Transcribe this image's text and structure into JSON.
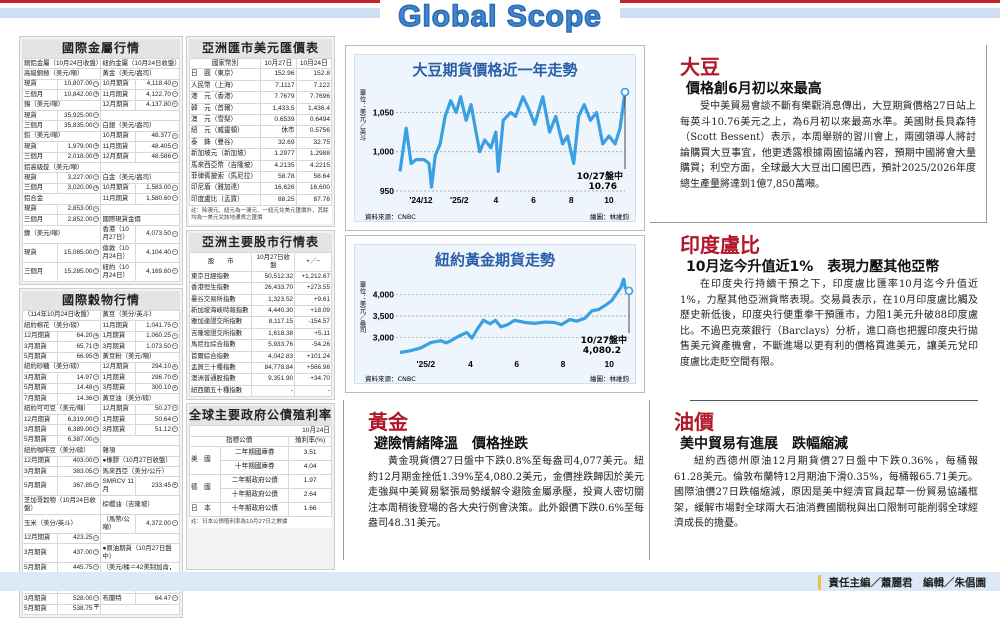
{
  "header": {
    "title": "Global Scope"
  },
  "metals": {
    "title": "國際金屬行情",
    "rows": [
      [
        "銅鋁金屬（10月24日收盤）",
        "",
        "",
        "紐約金屬（10月24日收盤）",
        "",
        ""
      ],
      [
        "高級銅極（美元/噸）",
        "",
        "",
        "黃金（美元/盎司）",
        "",
        ""
      ],
      [
        "現貨",
        "10,807.00",
        "-",
        "10月期貨",
        "4,118.40",
        "-"
      ],
      [
        "三個月",
        "10,842.00",
        "+",
        "11月期貨",
        "4,122.70",
        "-"
      ],
      [
        "錫（美元/噸）",
        "",
        "",
        "12月期貨",
        "4,137.80",
        "-"
      ],
      [
        "現貨",
        "35,925.00",
        "-",
        "",
        "",
        ""
      ],
      [
        "三個月",
        "35,835.00",
        "-",
        "白銀（美元/盎司）",
        "",
        ""
      ],
      [
        "鉛（美元/噸）",
        "",
        "",
        "10月期貨",
        "48.377",
        "-"
      ],
      [
        "現貨",
        "1,979.00",
        "+",
        "11月期貨",
        "48.405",
        "-"
      ],
      [
        "三個月",
        "2,018.00",
        "+",
        "12月期貨",
        "48.586",
        "-"
      ],
      [
        "鋁高級錠（美元/噸）",
        "",
        "",
        "",
        "",
        ""
      ],
      [
        "現貨",
        "3,227.00",
        "-",
        "白金（美元/盎司）",
        "",
        ""
      ],
      [
        "三個月",
        "3,020.00",
        "+",
        "10月期貨",
        "1,583.00",
        "-"
      ],
      [
        "鋁合金",
        "",
        "",
        "11月期貨",
        "1,580.60",
        "-"
      ],
      [
        "現貨",
        "2,853.00",
        "-",
        "",
        "",
        ""
      ],
      [
        "三個月",
        "2,852.00",
        "-",
        "國際現貨金價",
        "",
        ""
      ],
      [
        "鎳（美元/噸）",
        "",
        "",
        "香港（10月27日）",
        "4,073.50",
        "-"
      ],
      [
        "現貨",
        "15,085.00",
        "-",
        "倫敦（10月24日）",
        "4,104.40",
        "-"
      ],
      [
        "三個月",
        "15,285.00",
        "-",
        "紐約（10月24日）",
        "4,169.60",
        "-"
      ]
    ]
  },
  "grains": {
    "title": "國際穀物行情",
    "rows": [
      [
        "（114年10月24日收盤）",
        "",
        "",
        "黃豆（美分/英斗）",
        "",
        ""
      ],
      [
        "紐約棉花（美分/磅）",
        "",
        "",
        "11月期貨",
        "1,041.75",
        "-"
      ],
      [
        "12月期貨",
        "64.20",
        "+",
        "1月期貨",
        "1,060.25",
        "-"
      ],
      [
        "3月期貨",
        "65.71",
        "+",
        "3月期貨",
        "1,073.50",
        "-"
      ],
      [
        "5月期貨",
        "66.95",
        "+",
        "黃豆粉（美元/噸）",
        "",
        ""
      ],
      [
        "紐約砂糖（美分/磅）",
        "",
        "",
        "12月期貨",
        "294.10",
        "+"
      ],
      [
        "3月期貨",
        "14.97",
        "-",
        "1月期貨",
        "296.70",
        "+"
      ],
      [
        "5月期貨",
        "14.48",
        "-",
        "3月期貨",
        "300.10",
        "+"
      ],
      [
        "7月期貨",
        "14.36",
        "-",
        "黃豆油（美分/磅）",
        "",
        ""
      ],
      [
        "紐約可可豆（美元/噸）",
        "",
        "",
        "12月期貨",
        "50.27",
        "-"
      ],
      [
        "12月期貨",
        "6,319.00",
        "-",
        "1月期貨",
        "50.64",
        "-"
      ],
      [
        "3月期貨",
        "6,389.00",
        "-",
        "3月期貨",
        "51.12",
        "-"
      ],
      [
        "5月期貨",
        "6,387.00",
        "-",
        "",
        "",
        ""
      ],
      [
        "紐約咖啡豆（美分/磅）",
        "",
        "",
        "雜項",
        "",
        ""
      ],
      [
        "12月期貨",
        "403.00",
        "-",
        "●橡膠（10月27日收盤）",
        "",
        ""
      ],
      [
        "3月期貨",
        "383.05",
        "-",
        "馬來西亞（美分/公斤）",
        "",
        ""
      ],
      [
        "5月期貨",
        "367.85",
        "-",
        "SMRCV 11月",
        "233.45",
        "+"
      ],
      [
        "芝加哥穀物（10月24日收盤）",
        "",
        "",
        "棕櫚油（吉隆坡）",
        "",
        ""
      ],
      [
        "玉米（美分/英斗）",
        "",
        "",
        "（馬幣/公噸）",
        "4,372.00",
        "-"
      ],
      [
        "12月期貨",
        "423.25",
        "-",
        "",
        "",
        ""
      ],
      [
        "3月期貨",
        "437.00",
        "-",
        "●原油期貨（10月27日盤中）",
        "",
        ""
      ],
      [
        "5月期貨",
        "445.75",
        "-",
        "（美元/桶＝42美制加侖，",
        "",
        ""
      ],
      [
        "小麥（美分/英斗）",
        "",
        "",
        "158.98公升）",
        "",
        ""
      ],
      [
        "12月期貨",
        "512.50",
        "-",
        "西德州",
        "60.82",
        "-"
      ],
      [
        "3月期貨",
        "528.00",
        "-",
        "布蘭特",
        "64.47",
        "-"
      ],
      [
        "5月期貨",
        "538.75",
        "平",
        "",
        "",
        ""
      ]
    ]
  },
  "fx": {
    "title": "亞洲匯市美元匯價表",
    "header": [
      "國家幣別",
      "10月27日",
      "10月24日"
    ],
    "rows": [
      [
        "日　圓（東京）",
        "152.96",
        "152.8"
      ],
      [
        "人民幣（上海）",
        "7.1117",
        "7.122"
      ],
      [
        "港　元（香港）",
        "7.7679",
        "7.7696"
      ],
      [
        "韓　元（首爾）",
        "1,433.5",
        "1,436.4"
      ],
      [
        "澳　元（雪梨）",
        "0.6539",
        "0.6494"
      ],
      [
        "紐　元（威靈頓）",
        "休市",
        "0.5756"
      ],
      [
        "泰　銖（曼谷）",
        "32.69",
        "32.75"
      ],
      [
        "新加坡元（新加坡）",
        "1.2977",
        "1.2988"
      ],
      [
        "馬來西亞幣（吉隆坡）",
        "4.2135",
        "4.2215"
      ],
      [
        "菲律賓披索（馬尼拉）",
        "58.78",
        "58.64"
      ],
      [
        "印尼盾（雅加達）",
        "16,626",
        "16,600"
      ],
      [
        "印度盧比（孟買）",
        "88.25",
        "87.76"
      ]
    ],
    "note": "註：除澳元、紐元為一澳元、一紐元兌美元匯價外，其餘均為一美元兌該地通貨之匯價"
  },
  "stocks": {
    "title": "亞洲主要股市行情表",
    "header": [
      "股　　市",
      "10月27日收盤",
      "+／−"
    ],
    "rows": [
      [
        "東京日經指數",
        "50,512.32",
        "+1,212.67"
      ],
      [
        "香港恒生指數",
        "26,433.70",
        "+273.55"
      ],
      [
        "曼谷交易所指數",
        "1,323.52",
        "+9.61"
      ],
      [
        "新加坡海峽時報指數",
        "4,440.30",
        "+18.09"
      ],
      [
        "雅加達證交所指數",
        "8,117.15",
        "-154.57"
      ],
      [
        "吉隆坡證交所指數",
        "1,618.38",
        "+5.11"
      ],
      [
        "馬尼拉綜合指數",
        "5,933.76",
        "-54.26"
      ],
      [
        "首爾綜合指數",
        "4,042.83",
        "+101.24"
      ],
      [
        "孟買三十種指數",
        "84,778.84",
        "+566.96"
      ],
      [
        "澳洲普通股指數",
        "9,351.90",
        "+34.70"
      ],
      [
        "紐西蘭五十種指數",
        "-",
        "-"
      ]
    ]
  },
  "bonds": {
    "title": "全球主要政府公債殖利率",
    "date": "10月24日",
    "header": [
      "指標公債",
      "殖利率(%)"
    ],
    "rows": [
      [
        "美　國",
        "二年期國庫券",
        "3.51"
      ],
      [
        "",
        "十年期國庫券",
        "4.04"
      ],
      [
        "德　國",
        "二年期政府公債",
        "1.97"
      ],
      [
        "",
        "十年期政府公債",
        "2.64"
      ],
      [
        "日　本",
        "十年期政府公債",
        "1.66"
      ]
    ],
    "note": "註：日本公債殖利率為10月27日之數據"
  },
  "chart_data": [
    {
      "type": "line",
      "title": "大豆期貨價格近一年走勢",
      "ylabel": "單位：美元／英斗",
      "ylim": [
        950,
        1085
      ],
      "yticks": [
        950,
        1000,
        1050
      ],
      "ytick_labels": [
        "950",
        "1,000",
        "1,050"
      ],
      "xticks": [
        [
          "2024-12-01",
          "'24/12"
        ],
        [
          "2025-02-01",
          "'25/2"
        ],
        [
          "2025-04-01",
          "4"
        ],
        [
          "2025-06-01",
          "6"
        ],
        [
          "2025-08-01",
          "8"
        ],
        [
          "2025-10-01",
          "10"
        ]
      ],
      "grid": true,
      "source": "資料來源：CNBC",
      "credit": "繪圖：林維鈞",
      "annotation": "10/27盤中",
      "annotation_value": "10.76",
      "line_color": "#3aa0e2",
      "x": [
        "2024-10-28",
        "2024-11-07",
        "2024-11-15",
        "2024-11-23",
        "2024-12-06",
        "2024-12-14",
        "2024-12-18",
        "2024-12-24",
        "2025-01-01",
        "2025-01-09",
        "2025-01-18",
        "2025-01-27",
        "2025-02-03",
        "2025-02-12",
        "2025-02-20",
        "2025-02-28",
        "2025-03-06",
        "2025-03-14",
        "2025-03-24",
        "2025-04-01",
        "2025-04-05",
        "2025-04-13",
        "2025-04-25",
        "2025-05-03",
        "2025-05-15",
        "2025-05-24",
        "2025-06-03",
        "2025-06-16",
        "2025-06-27",
        "2025-07-07",
        "2025-07-18",
        "2025-07-26",
        "2025-08-05",
        "2025-08-13",
        "2025-08-22",
        "2025-09-01",
        "2025-09-11",
        "2025-09-21",
        "2025-10-01",
        "2025-10-11",
        "2025-10-19",
        "2025-10-27"
      ],
      "y": [
        975,
        1030,
        985,
        990,
        990,
        985,
        955,
        995,
        1010,
        1045,
        1065,
        1050,
        1070,
        1040,
        1060,
        1025,
        1000,
        1015,
        1005,
        1025,
        975,
        1040,
        1050,
        1045,
        1070,
        1055,
        1035,
        1070,
        1025,
        1045,
        1010,
        1020,
        985,
        1045,
        1060,
        1040,
        1050,
        1010,
        1020,
        1010,
        1030,
        1076
      ]
    },
    {
      "type": "line",
      "title": "紐約黃金期貨走勢",
      "ylabel": "單位：美元／盎司",
      "ylim": [
        2600,
        4400
      ],
      "yticks": [
        3000,
        3500,
        4000
      ],
      "ytick_labels": [
        "3,000",
        "3,500",
        "4,000"
      ],
      "xticks": [
        [
          "2025-02-01",
          "'25/2"
        ],
        [
          "2025-04-01",
          "4"
        ],
        [
          "2025-06-01",
          "6"
        ],
        [
          "2025-08-01",
          "8"
        ],
        [
          "2025-10-01",
          "10"
        ]
      ],
      "grid": true,
      "source": "資料來源：CNBC",
      "credit": "繪圖：林維鈞",
      "annotation": "10/27盤中",
      "annotation_value": "4,080.2",
      "line_color": "#3aa0e2",
      "x": [
        "2024-12-29",
        "2025-01-12",
        "2025-01-25",
        "2025-02-08",
        "2025-02-21",
        "2025-02-28",
        "2025-03-05",
        "2025-03-16",
        "2025-03-27",
        "2025-04-03",
        "2025-04-10",
        "2025-04-18",
        "2025-04-27",
        "2025-05-04",
        "2025-05-11",
        "2025-05-20",
        "2025-05-29",
        "2025-06-12",
        "2025-06-25",
        "2025-07-08",
        "2025-07-21",
        "2025-07-30",
        "2025-08-10",
        "2025-08-19",
        "2025-08-30",
        "2025-09-08",
        "2025-09-17",
        "2025-09-26",
        "2025-10-04",
        "2025-10-10",
        "2025-10-16",
        "2025-10-20",
        "2025-10-22",
        "2025-10-27"
      ],
      "y": [
        2658,
        2700,
        2760,
        2890,
        2930,
        2880,
        2920,
        3030,
        3120,
        2990,
        3200,
        3400,
        3320,
        3400,
        3250,
        3300,
        3400,
        3350,
        3330,
        3360,
        3350,
        3300,
        3420,
        3380,
        3450,
        3620,
        3650,
        3750,
        3850,
        4000,
        4150,
        4350,
        4150,
        4080
      ]
    }
  ],
  "articles": {
    "soy": {
      "kicker": "大豆",
      "headline": "價格創6月初以來最高",
      "body": "受中美貿易會談不斷有樂觀消息傳出，大豆期貨價格27日站上每英斗10.76美元之上，為6月初以來最高水準。美國財長貝森特（Scott Bessent）表示，本周舉辦的習川會上，兩國領導人將討論購買大豆事宜，他更透露根據兩國協議內容，預期中國將會大量購買；利空方面，全球最大大豆出口國巴西，預計2025/2026年度總生產量將達到1億7,850萬噸。"
    },
    "inr": {
      "kicker": "印度盧比",
      "headline": "10月迄今升值近1%　表現力壓其他亞幣",
      "body": "在印度央行持續干預之下，印度盧比匯率10月迄今升值近1%，力壓其他亞洲貨幣表現。交易員表示，在10月印度盧比觸及歷史新低後，印度央行便重拳干預匯市，力阻1美元升破88印度盧比。不過巴克萊銀行（Barclays）分析，進口商也把握印度央行拋售美元資產機會，不斷進場以更有利的價格買進美元，讓美元兌印度盧比走貶空間有限。"
    },
    "gold": {
      "kicker": "黃金",
      "headline": "避險情緒降溫　價格挫跌",
      "body": "黃金現貨價27日盤中下跌0.8%至每盎司4,077美元。紐約12月期金挫低1.39%至4,080.2美元，金價挫跌歸因於美元走強與中美貿易緊張局勢緩解令避險金屬承壓，投資人密切關注本周稍後登場的各大央行例會決策。此外銀價下跌0.6%至每盎司48.31美元。"
    },
    "oil": {
      "kicker": "油價",
      "headline": "美中貿易有進展　跌幅縮減",
      "body": "紐約西德州原油12月期貨價27日盤中下跌0.36%，每桶報61.28美元。倫敦布蘭特12月期油下滑0.35%，每桶報65.71美元。國際油價27日跌幅縮減，原因是美中經濟官員起草一份貿易協議框架，緩解市場對全球兩大石油消費國關稅與出口限制可能削弱全球經濟成長的擔憂。"
    }
  },
  "footer": {
    "credit": "責任主編／蕭麗君　編輯／朱倡園"
  }
}
